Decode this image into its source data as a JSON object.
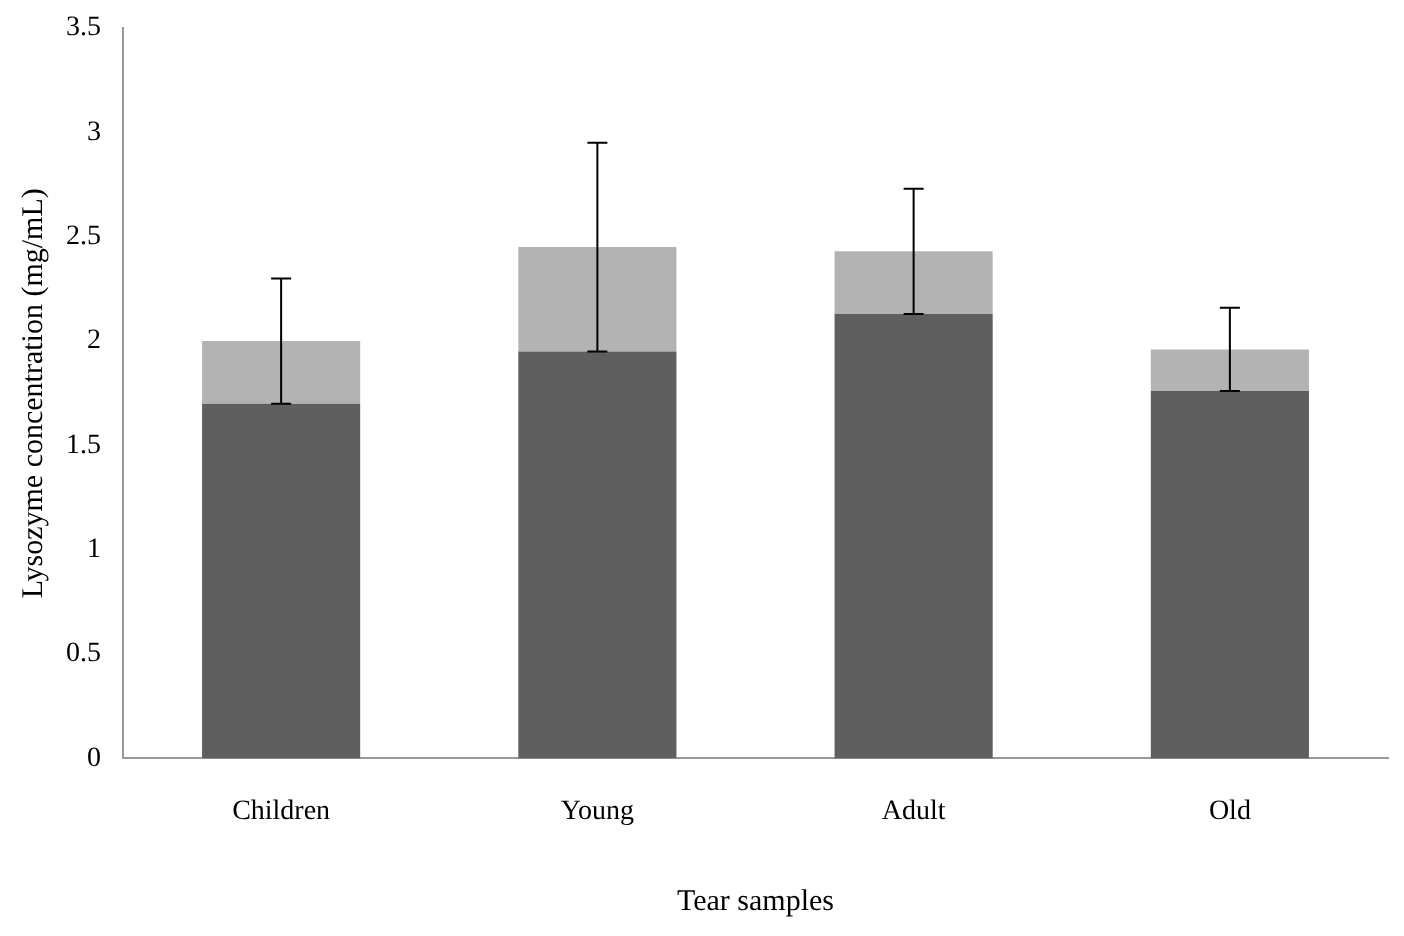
{
  "chart_data": {
    "type": "bar",
    "stacked": true,
    "xlabel": "Tear samples",
    "ylabel": "Lysozyme concentration (mg/mL)",
    "categories": [
      "Children",
      "Young",
      "Adult",
      "Old"
    ],
    "series": [
      {
        "color": "#5f5f5f",
        "values": [
          1.7,
          1.95,
          2.13,
          1.76
        ]
      },
      {
        "color": "#b3b3b3",
        "values": [
          0.3,
          0.5,
          0.3,
          0.2
        ],
        "errors": [
          0.3,
          0.5,
          0.3,
          0.2
        ]
      }
    ],
    "ylim": [
      0,
      3.5
    ],
    "yticks": [
      0,
      0.5,
      1,
      1.5,
      2,
      2.5,
      3,
      3.5
    ],
    "grid": false,
    "legend": false
  }
}
